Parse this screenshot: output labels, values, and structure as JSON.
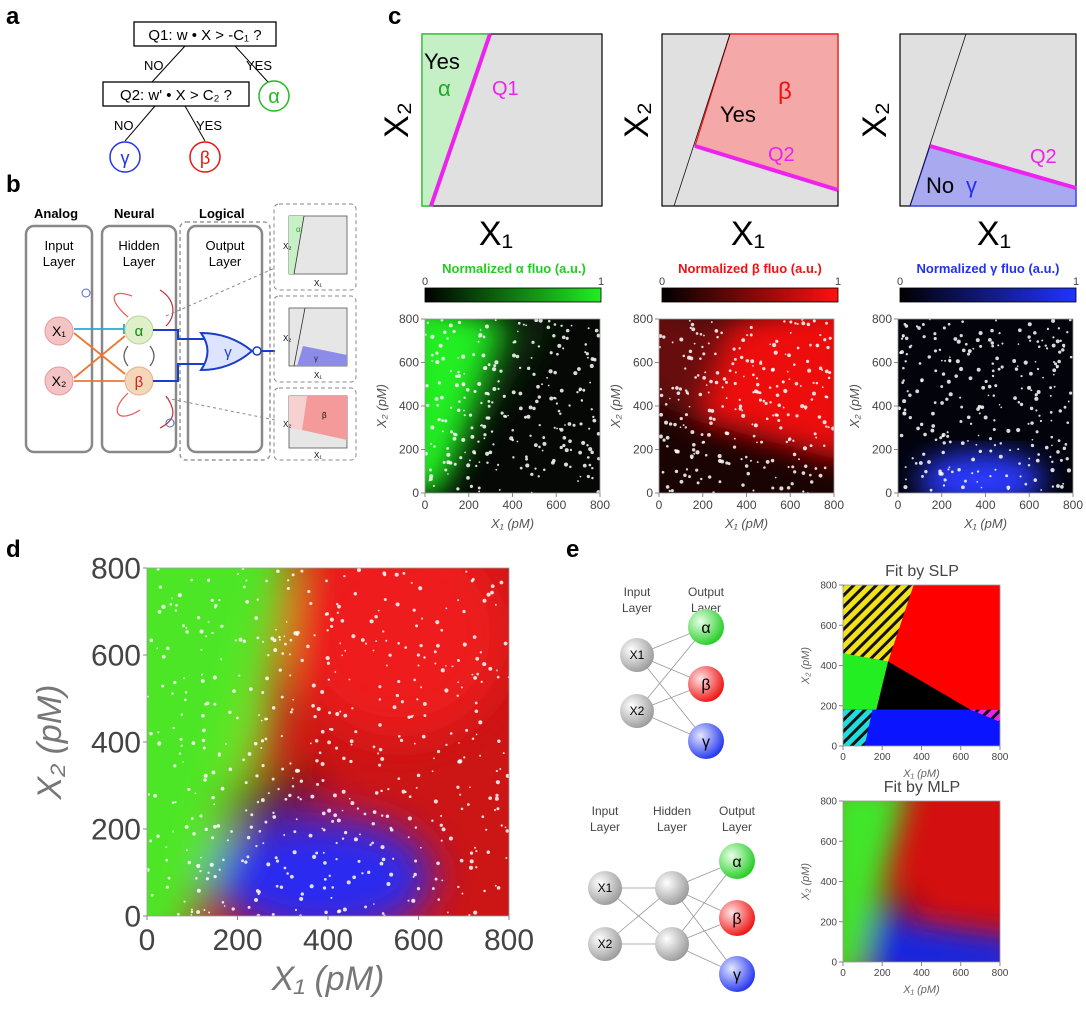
{
  "panels": {
    "a": {
      "label": "a",
      "q1": "Q1: w • X > -C₁ ?",
      "q2": "Q2: w' • X > C₂ ?",
      "no": "NO",
      "yes": "YES",
      "alpha": "α",
      "beta": "β",
      "gamma": "γ"
    },
    "b": {
      "label": "b",
      "col_analog": "Analog",
      "col_neural": "Neural",
      "col_logical": "Logical",
      "input_layer": [
        "Input",
        "Layer"
      ],
      "hidden_layer": [
        "Hidden",
        "Layer"
      ],
      "output_layer": [
        "Output",
        "Layer"
      ],
      "x1": "X₁",
      "x2": "X₂",
      "alpha": "α",
      "beta": "β",
      "gamma": "γ",
      "mini_x1": "X₁",
      "mini_x2": "X₂"
    },
    "c": {
      "label": "c",
      "x1": "X₁",
      "x2": "X₂",
      "region_alpha": {
        "word": "Yes",
        "greek": "α",
        "q": "Q1"
      },
      "region_beta": {
        "word": "Yes",
        "greek": "β",
        "q": "Q2"
      },
      "region_gamma": {
        "word": "No",
        "greek": "γ",
        "q": "Q2"
      },
      "colorbars": [
        {
          "title": "Normalized α fluo (a.u.)",
          "min": "0",
          "max": "1",
          "color": "#22dd22"
        },
        {
          "title": "Normalized β fluo (a.u.)",
          "min": "0",
          "max": "1",
          "color": "#ff1111"
        },
        {
          "title": "Normalized γ fluo (a.u.)",
          "min": "0",
          "max": "1",
          "color": "#2233ff"
        }
      ],
      "xlabel": "X₁ (pM)",
      "ylabel": "X₂ (pM)",
      "ticks": [
        "0",
        "200",
        "400",
        "600",
        "800"
      ]
    },
    "d": {
      "label": "d",
      "xlabel": "X₁ (pM)",
      "ylabel": "X₂ (pM)",
      "ticks": [
        "0",
        "200",
        "400",
        "600",
        "800"
      ]
    },
    "e": {
      "label": "e",
      "input_layer": [
        "Input",
        "Layer"
      ],
      "hidden_layer": [
        "Hidden",
        "Layer"
      ],
      "output_layer": [
        "Output",
        "Layer"
      ],
      "x1": "X1",
      "x2": "X2",
      "alpha": "α",
      "beta": "β",
      "gamma": "γ",
      "slp_title": "Fit by SLP",
      "mlp_title": "Fit by MLP",
      "xlabel": "X₁ (pM)",
      "ylabel": "X₂ (pM)",
      "ticks": [
        "0",
        "200",
        "400",
        "600",
        "800"
      ]
    }
  },
  "colors": {
    "alpha": "#22cc22",
    "beta": "#ee1111",
    "gamma": "#2233ee",
    "magenta": "#ee22ee"
  },
  "chart_data": [
    {
      "type": "scatter",
      "panel": "c-alpha",
      "description_series": "alpha fluorescence over (X1, X2)",
      "xlabel": "X₁ (pM)",
      "ylabel": "X₂ (pM)",
      "xlim": [
        0,
        800
      ],
      "ylim": [
        0,
        800
      ],
      "x_ticks": [
        0,
        200,
        400,
        600,
        800
      ],
      "y_ticks": [
        0,
        200,
        400,
        600,
        800
      ],
      "boundary_line": [
        [
          70,
          0
        ],
        [
          350,
          800
        ]
      ]
    },
    {
      "type": "scatter",
      "panel": "c-beta",
      "xlabel": "X₁ (pM)",
      "ylabel": "X₂ (pM)",
      "xlim": [
        0,
        800
      ],
      "ylim": [
        0,
        800
      ],
      "x_ticks": [
        0,
        200,
        400,
        600,
        800
      ],
      "y_ticks": [
        0,
        200,
        400,
        600,
        800
      ],
      "boundary_lines": [
        [
          [
            70,
            0
          ],
          [
            350,
            800
          ]
        ],
        [
          [
            180,
            330
          ],
          [
            800,
            130
          ]
        ]
      ]
    },
    {
      "type": "scatter",
      "panel": "c-gamma",
      "xlabel": "X₁ (pM)",
      "ylabel": "X₂ (pM)",
      "xlim": [
        0,
        800
      ],
      "ylim": [
        0,
        800
      ],
      "x_ticks": [
        0,
        200,
        400,
        600,
        800
      ],
      "y_ticks": [
        0,
        200,
        400,
        600,
        800
      ],
      "gamma_peak": [
        380,
        80
      ]
    },
    {
      "type": "scatter",
      "panel": "d",
      "xlabel": "X₁ (pM)",
      "ylabel": "X₂ (pM)",
      "xlim": [
        0,
        800
      ],
      "ylim": [
        0,
        800
      ],
      "x_ticks": [
        0,
        200,
        400,
        600,
        800
      ],
      "y_ticks": [
        0,
        200,
        400,
        600,
        800
      ]
    },
    {
      "type": "heatmap",
      "panel": "e-slp",
      "title": "Fit by SLP",
      "xlabel": "X₁ (pM)",
      "ylabel": "X₂ (pM)",
      "xlim": [
        0,
        800
      ],
      "ylim": [
        0,
        800
      ],
      "x_ticks": [
        0,
        200,
        400,
        600,
        800
      ],
      "y_ticks": [
        0,
        200,
        400,
        600,
        800
      ]
    },
    {
      "type": "heatmap",
      "panel": "e-mlp",
      "title": "Fit by MLP",
      "xlabel": "X₁ (pM)",
      "ylabel": "X₂ (pM)",
      "xlim": [
        0,
        800
      ],
      "ylim": [
        0,
        800
      ],
      "x_ticks": [
        0,
        200,
        400,
        600,
        800
      ],
      "y_ticks": [
        0,
        200,
        400,
        600,
        800
      ]
    }
  ]
}
